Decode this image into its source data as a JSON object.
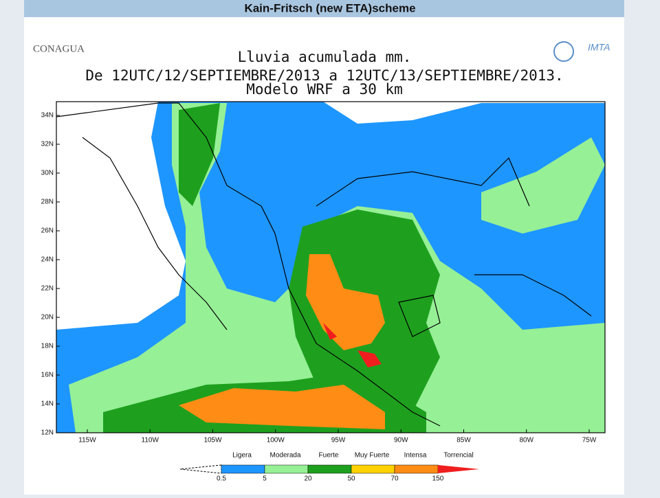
{
  "header": {
    "title": "Kain-Fritsch (new ETA)scheme"
  },
  "logos": {
    "left": "CONAGUA",
    "right": "IMTA"
  },
  "map": {
    "title_lines": [
      "Lluvia acumulada mm.",
      "De 12UTC/12/SEPTIEMBRE/2013 a 12UTC/13/SEPTIEMBRE/2013.",
      "Modelo WRF a 30 km"
    ],
    "lat_labels": [
      "34N",
      "32N",
      "30N",
      "28N",
      "26N",
      "24N",
      "22N",
      "20N",
      "18N",
      "16N",
      "14N",
      "12N"
    ],
    "lon_labels": [
      "115W",
      "110W",
      "105W",
      "100W",
      "95W",
      "90W",
      "85W",
      "80W",
      "75W"
    ]
  },
  "legend": {
    "classes": [
      "Ligera",
      "Moderada",
      "Fuerte",
      "Muy Fuerte",
      "Intensa",
      "Torrencial"
    ],
    "thresholds": [
      "0.5",
      "5",
      "20",
      "50",
      "70",
      "150"
    ],
    "colors": [
      "#1e96ff",
      "#96f096",
      "#1ea01e",
      "#ffd200",
      "#ff8c14",
      "#f01e1e"
    ]
  }
}
